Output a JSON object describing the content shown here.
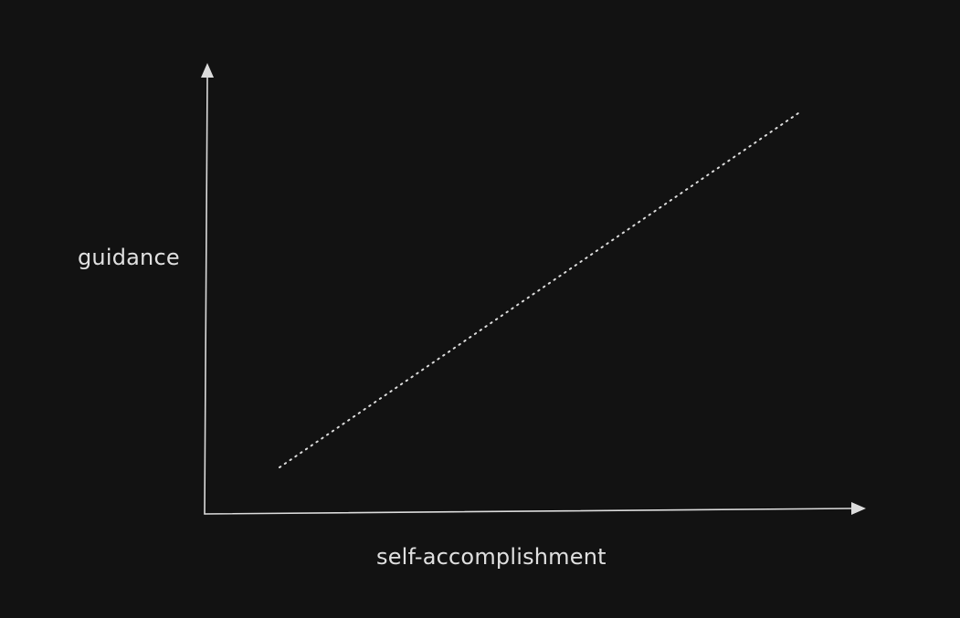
{
  "diagram": {
    "y_axis_label": "guidance",
    "x_axis_label": "self-accomplishment",
    "relationship": "positive-linear",
    "line_style": "dotted",
    "colors": {
      "background": "#121212",
      "stroke": "#dcdcdc",
      "text": "#e0e0e0"
    }
  }
}
